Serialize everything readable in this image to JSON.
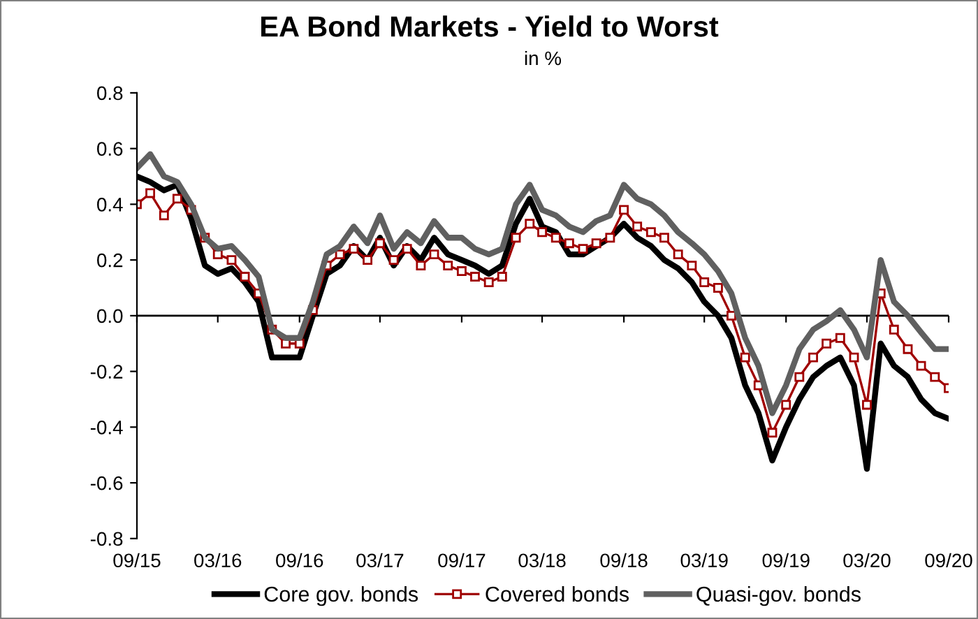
{
  "chart_data": {
    "type": "line",
    "title": "EA Bond Markets - Yield to Worst",
    "subtitle": "in %",
    "x": [
      "2015-09",
      "2015-10",
      "2015-11",
      "2015-12",
      "2016-01",
      "2016-02",
      "2016-03",
      "2016-04",
      "2016-05",
      "2016-06",
      "2016-07",
      "2016-08",
      "2016-09",
      "2016-10",
      "2016-11",
      "2016-12",
      "2017-01",
      "2017-02",
      "2017-03",
      "2017-04",
      "2017-05",
      "2017-06",
      "2017-07",
      "2017-08",
      "2017-09",
      "2017-10",
      "2017-11",
      "2017-12",
      "2018-01",
      "2018-02",
      "2018-03",
      "2018-04",
      "2018-05",
      "2018-06",
      "2018-07",
      "2018-08",
      "2018-09",
      "2018-10",
      "2018-11",
      "2018-12",
      "2019-01",
      "2019-02",
      "2019-03",
      "2019-04",
      "2019-05",
      "2019-06",
      "2019-07",
      "2019-08",
      "2019-09",
      "2019-10",
      "2019-11",
      "2019-12",
      "2020-01",
      "2020-02",
      "2020-03",
      "2020-04",
      "2020-05",
      "2020-06",
      "2020-07",
      "2020-08",
      "2020-09"
    ],
    "series": [
      {
        "name": "Core gov. bonds",
        "color": "#000000",
        "marker": "none",
        "values": [
          0.5,
          0.48,
          0.45,
          0.47,
          0.35,
          0.18,
          0.15,
          0.17,
          0.12,
          0.05,
          -0.15,
          -0.15,
          -0.15,
          0.0,
          0.15,
          0.18,
          0.25,
          0.2,
          0.28,
          0.18,
          0.25,
          0.2,
          0.28,
          0.22,
          0.2,
          0.18,
          0.15,
          0.18,
          0.33,
          0.42,
          0.32,
          0.3,
          0.22,
          0.22,
          0.25,
          0.28,
          0.33,
          0.28,
          0.25,
          0.2,
          0.17,
          0.12,
          0.05,
          0.0,
          -0.08,
          -0.25,
          -0.35,
          -0.52,
          -0.4,
          -0.3,
          -0.22,
          -0.18,
          -0.15,
          -0.25,
          -0.55,
          -0.1,
          -0.18,
          -0.22,
          -0.3,
          -0.35,
          -0.37
        ]
      },
      {
        "name": "Covered bonds",
        "color": "#a00000",
        "marker": "square",
        "values": [
          0.4,
          0.44,
          0.36,
          0.42,
          0.38,
          0.28,
          0.22,
          0.2,
          0.14,
          0.08,
          -0.05,
          -0.1,
          -0.1,
          0.02,
          0.18,
          0.22,
          0.24,
          0.2,
          0.26,
          0.2,
          0.24,
          0.18,
          0.22,
          0.18,
          0.16,
          0.14,
          0.12,
          0.14,
          0.28,
          0.33,
          0.3,
          0.28,
          0.26,
          0.24,
          0.26,
          0.28,
          0.38,
          0.32,
          0.3,
          0.28,
          0.22,
          0.18,
          0.12,
          0.1,
          0.0,
          -0.15,
          -0.25,
          -0.42,
          -0.32,
          -0.22,
          -0.15,
          -0.1,
          -0.08,
          -0.15,
          -0.32,
          0.08,
          -0.05,
          -0.12,
          -0.18,
          -0.22,
          -0.26
        ]
      },
      {
        "name": "Quasi-gov. bonds",
        "color": "#606060",
        "marker": "none",
        "values": [
          0.53,
          0.58,
          0.5,
          0.48,
          0.4,
          0.28,
          0.24,
          0.25,
          0.2,
          0.14,
          -0.05,
          -0.08,
          -0.08,
          0.05,
          0.22,
          0.25,
          0.32,
          0.26,
          0.36,
          0.24,
          0.3,
          0.26,
          0.34,
          0.28,
          0.28,
          0.24,
          0.22,
          0.24,
          0.4,
          0.47,
          0.38,
          0.36,
          0.32,
          0.3,
          0.34,
          0.36,
          0.47,
          0.42,
          0.4,
          0.36,
          0.3,
          0.26,
          0.22,
          0.16,
          0.08,
          -0.08,
          -0.18,
          -0.35,
          -0.25,
          -0.12,
          -0.05,
          -0.02,
          0.02,
          -0.05,
          -0.15,
          0.2,
          0.05,
          0.0,
          -0.06,
          -0.12,
          -0.12
        ]
      }
    ],
    "xlim": [
      "2015-09-01",
      "2020-09-01"
    ],
    "xticks": [
      {
        "value": "2015-09-01",
        "label": "09/15"
      },
      {
        "value": "2016-03-01",
        "label": "03/16"
      },
      {
        "value": "2016-09-01",
        "label": "09/16"
      },
      {
        "value": "2017-03-01",
        "label": "03/17"
      },
      {
        "value": "2017-09-01",
        "label": "09/17"
      },
      {
        "value": "2018-03-01",
        "label": "03/18"
      },
      {
        "value": "2018-09-01",
        "label": "09/18"
      },
      {
        "value": "2019-03-01",
        "label": "03/19"
      },
      {
        "value": "2019-09-01",
        "label": "09/19"
      },
      {
        "value": "2020-03-01",
        "label": "03/20"
      },
      {
        "value": "2020-09-01",
        "label": "09/20"
      }
    ],
    "ylim": [
      -0.8,
      0.8
    ],
    "yticks": [
      {
        "value": -0.8,
        "label": "-0.8"
      },
      {
        "value": -0.6,
        "label": "-0.6"
      },
      {
        "value": -0.4,
        "label": "-0.4"
      },
      {
        "value": -0.2,
        "label": "-0.2"
      },
      {
        "value": 0,
        "label": "0.0"
      },
      {
        "value": 0.2,
        "label": "0.2"
      },
      {
        "value": 0.4,
        "label": "0.4"
      },
      {
        "value": 0.6,
        "label": "0.6"
      },
      {
        "value": 0.8,
        "label": "0.8"
      }
    ],
    "ref_lines": [
      {
        "axis": "y",
        "value": 0,
        "color": "#000000",
        "line_style": "solid"
      }
    ],
    "legend": "bottom"
  }
}
